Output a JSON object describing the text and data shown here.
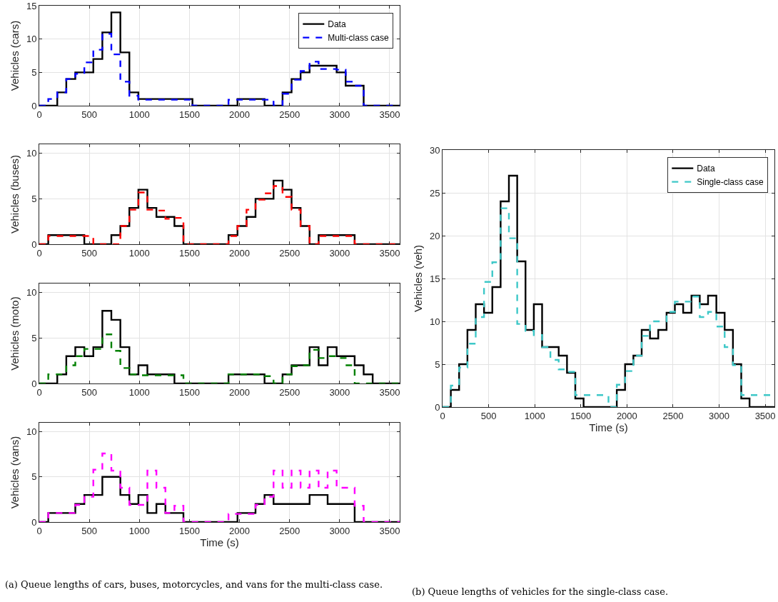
{
  "chart_data": [
    {
      "type": "step",
      "ylabel": "Vehicles (cars)",
      "xlim": [
        0,
        3600
      ],
      "xticks": [
        0,
        500,
        1000,
        1500,
        2000,
        2500,
        3000,
        3500
      ],
      "ylim": [
        0,
        15
      ],
      "yticks": [
        0,
        5,
        10,
        15
      ],
      "grid": true,
      "legend": "top right",
      "x": [
        0,
        90,
        180,
        270,
        360,
        450,
        540,
        630,
        720,
        810,
        900,
        990,
        1080,
        1170,
        1260,
        1350,
        1440,
        1530,
        1620,
        1710,
        1800,
        1890,
        1980,
        2070,
        2160,
        2250,
        2340,
        2430,
        2520,
        2610,
        2700,
        2790,
        2880,
        2970,
        3060,
        3150,
        3240,
        3330,
        3420,
        3510,
        3600
      ],
      "series": [
        {
          "name": "Data",
          "color": "#000000",
          "line_style": "solid",
          "values": [
            0,
            0,
            2,
            4,
            5,
            5,
            7,
            11,
            14,
            8,
            2,
            1,
            1,
            1,
            1,
            1,
            1,
            0,
            0,
            0,
            0,
            0,
            1,
            1,
            1,
            0,
            0,
            2,
            4,
            5,
            6,
            6,
            6,
            5,
            3,
            3,
            0,
            0,
            0,
            0,
            0
          ]
        },
        {
          "name": "Multi-class case",
          "color": "#0000ff",
          "line_style": "dashed",
          "values": [
            0,
            1,
            2,
            4,
            4.8,
            6.5,
            8.4,
            10.8,
            7.7,
            3.6,
            1.5,
            0.9,
            0.9,
            0.9,
            0.9,
            0.9,
            0.9,
            0,
            0,
            0,
            0,
            0.9,
            0.9,
            0.9,
            0.9,
            0.9,
            0,
            1.8,
            3.9,
            5.2,
            6.6,
            5.5,
            5.5,
            5.4,
            3.6,
            3,
            0,
            0,
            0,
            0,
            0
          ]
        }
      ]
    },
    {
      "type": "step",
      "ylabel": "Vehicles (buses)",
      "xlim": [
        0,
        3600
      ],
      "xticks": [
        0,
        500,
        1000,
        1500,
        2000,
        2500,
        3000,
        3500
      ],
      "ylim": [
        0,
        11
      ],
      "yticks": [
        0,
        5,
        10
      ],
      "grid": true,
      "x": [
        0,
        90,
        180,
        270,
        360,
        450,
        540,
        630,
        720,
        810,
        900,
        990,
        1080,
        1170,
        1260,
        1350,
        1440,
        1530,
        1620,
        1710,
        1800,
        1890,
        1980,
        2070,
        2160,
        2250,
        2340,
        2430,
        2520,
        2610,
        2700,
        2790,
        2880,
        2970,
        3060,
        3150,
        3240,
        3330,
        3420,
        3510,
        3600
      ],
      "series": [
        {
          "color": "#000000",
          "line_style": "solid",
          "values": [
            0,
            1,
            1,
            1,
            1,
            0,
            0,
            0,
            1,
            2,
            4,
            6,
            4,
            3,
            3,
            2,
            0,
            0,
            0,
            0,
            0,
            1,
            2,
            3,
            5,
            5,
            7,
            6,
            4,
            2,
            0,
            1,
            1,
            1,
            1,
            0,
            0,
            0,
            0,
            0,
            0
          ]
        },
        {
          "color": "#ff0000",
          "line_style": "dashed",
          "values": [
            0,
            0.9,
            0.9,
            0.9,
            0.9,
            0.9,
            0,
            0,
            0,
            2,
            3.8,
            5.7,
            3.8,
            3.7,
            2.8,
            2.9,
            0,
            0,
            0,
            0,
            0,
            0.9,
            2,
            3.8,
            4.9,
            5.6,
            6.4,
            5.2,
            3.8,
            2,
            0,
            0.9,
            0.9,
            0.9,
            0.9,
            0,
            0,
            0,
            0,
            0,
            0
          ]
        }
      ]
    },
    {
      "type": "step",
      "ylabel": "Vehicles (moto)",
      "xlim": [
        0,
        3600
      ],
      "xticks": [
        0,
        500,
        1000,
        1500,
        2000,
        2500,
        3000,
        3500
      ],
      "ylim": [
        0,
        11
      ],
      "yticks": [
        0,
        5,
        10
      ],
      "grid": true,
      "x": [
        0,
        90,
        180,
        270,
        360,
        450,
        540,
        630,
        720,
        810,
        900,
        990,
        1080,
        1170,
        1260,
        1350,
        1440,
        1530,
        1620,
        1710,
        1800,
        1890,
        1980,
        2070,
        2160,
        2250,
        2340,
        2430,
        2520,
        2610,
        2700,
        2790,
        2880,
        2970,
        3060,
        3150,
        3240,
        3330,
        3420,
        3510,
        3600
      ],
      "series": [
        {
          "color": "#000000",
          "line_style": "solid",
          "values": [
            0,
            0,
            1,
            3,
            4,
            3,
            4,
            8,
            7,
            4,
            1,
            2,
            1,
            1,
            1,
            0,
            0,
            0,
            0,
            0,
            0,
            1,
            1,
            1,
            1,
            0,
            0,
            1,
            2,
            2,
            4,
            2,
            4,
            3,
            3,
            2,
            1,
            0,
            0,
            0,
            0
          ]
        },
        {
          "color": "#008000",
          "line_style": "dashed",
          "values": [
            0,
            1,
            1,
            2,
            3,
            3.8,
            3.8,
            5.4,
            3.6,
            1.7,
            1,
            0.9,
            0.9,
            0.9,
            0.9,
            0.9,
            0,
            0,
            0,
            0,
            0,
            1,
            1,
            1,
            1,
            0.8,
            0,
            1,
            1.9,
            2,
            3.7,
            2.8,
            3,
            2.8,
            2,
            0,
            0,
            0,
            0,
            0,
            0
          ]
        }
      ]
    },
    {
      "type": "step",
      "ylabel": "Vehicles (vans)",
      "xlabel": "Time (s)",
      "xlim": [
        0,
        3600
      ],
      "xticks": [
        0,
        500,
        1000,
        1500,
        2000,
        2500,
        3000,
        3500
      ],
      "ylim": [
        0,
        11
      ],
      "yticks": [
        0,
        5,
        10
      ],
      "grid": true,
      "annotations": [
        "(a) Queue lengths of cars, buses, motorcycles, and vans for the multi-class case."
      ],
      "x": [
        0,
        90,
        180,
        270,
        360,
        450,
        540,
        630,
        720,
        810,
        900,
        990,
        1080,
        1170,
        1260,
        1350,
        1440,
        1530,
        1620,
        1710,
        1800,
        1890,
        1980,
        2070,
        2160,
        2250,
        2340,
        2430,
        2520,
        2610,
        2700,
        2790,
        2880,
        2970,
        3060,
        3150,
        3240,
        3330,
        3420,
        3510,
        3600
      ],
      "series": [
        {
          "color": "#000000",
          "line_style": "solid",
          "values": [
            0,
            1,
            1,
            1,
            2,
            3,
            3,
            5,
            5,
            3,
            2,
            3,
            1,
            2,
            1,
            1,
            0,
            0,
            0,
            0,
            0,
            0,
            1,
            1,
            2,
            3,
            2,
            2,
            2,
            2,
            3,
            3,
            2,
            2,
            2,
            0,
            0,
            0,
            0,
            0,
            0
          ]
        },
        {
          "color": "#ff00ff",
          "line_style": "dashed",
          "values": [
            0,
            1,
            1,
            1,
            1.9,
            2.8,
            5.8,
            7.6,
            5.7,
            3.8,
            1.9,
            1.9,
            5.7,
            3.8,
            1,
            1.8,
            0,
            0,
            0,
            0,
            0,
            0.9,
            0.9,
            0.9,
            1.9,
            2.8,
            5.7,
            3.8,
            5.7,
            3.8,
            5.7,
            3.8,
            5.7,
            3.8,
            3.8,
            1.8,
            0,
            0,
            0,
            0,
            0
          ]
        }
      ]
    },
    {
      "type": "step",
      "ylabel": "Vehicles (veh)",
      "xlabel": "Time (s)",
      "xlim": [
        0,
        3600
      ],
      "xticks": [
        0,
        500,
        1000,
        1500,
        2000,
        2500,
        3000,
        3500
      ],
      "ylim": [
        0,
        30
      ],
      "yticks": [
        0,
        5,
        10,
        15,
        20,
        25,
        30
      ],
      "grid": true,
      "legend": "top right",
      "annotations": [
        "(b) Queue lengths of vehicles for the single-class case."
      ],
      "x": [
        0,
        90,
        180,
        270,
        360,
        450,
        540,
        630,
        720,
        810,
        900,
        990,
        1080,
        1170,
        1260,
        1350,
        1440,
        1530,
        1620,
        1710,
        1800,
        1890,
        1980,
        2070,
        2160,
        2250,
        2340,
        2430,
        2520,
        2610,
        2700,
        2790,
        2880,
        2970,
        3060,
        3150,
        3240,
        3330,
        3420,
        3510,
        3600
      ],
      "series": [
        {
          "name": "Data",
          "color": "#000000",
          "line_style": "solid",
          "values": [
            0,
            2,
            5,
            9,
            12,
            11,
            14,
            24,
            27,
            17,
            9,
            12,
            7,
            7,
            6,
            4,
            1,
            0,
            0,
            0,
            0,
            2,
            5,
            6,
            9,
            8,
            9,
            11,
            12,
            11,
            13,
            12,
            13,
            11,
            9,
            5,
            1,
            0,
            0,
            0,
            0
          ]
        },
        {
          "name": "Single-class case",
          "color": "#3ec8c8",
          "line_style": "dashed",
          "values": [
            0,
            2.5,
            4.6,
            7.4,
            10.5,
            14.6,
            16.9,
            23.2,
            19.7,
            9.7,
            8.9,
            8.4,
            7,
            5.5,
            4.4,
            4.1,
            1.4,
            1.4,
            1.4,
            1.4,
            0,
            2.6,
            4.2,
            6,
            8.3,
            10,
            10,
            11.1,
            12.3,
            12.3,
            12.9,
            10.5,
            11.1,
            9.4,
            7,
            4.9,
            1.4,
            1.4,
            1.4,
            1.4,
            1.4
          ]
        }
      ]
    }
  ]
}
